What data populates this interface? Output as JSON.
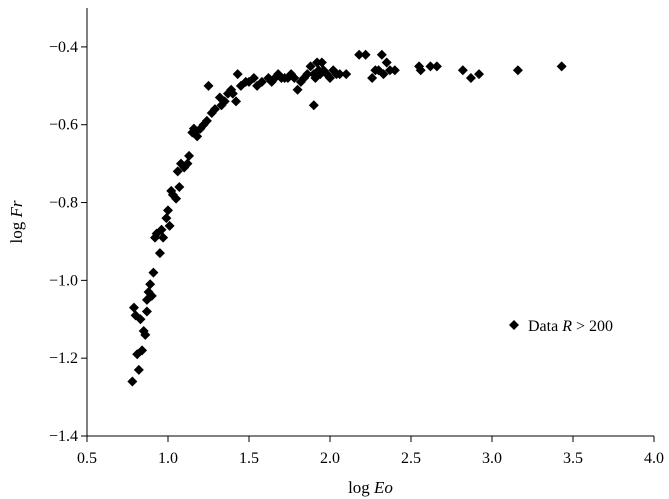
{
  "chart_data": {
    "type": "scatter",
    "title": "",
    "xlabel": {
      "prefix": "log ",
      "var": "Eo"
    },
    "ylabel": {
      "prefix": "log ",
      "var": "Fr"
    },
    "xlim": [
      0.5,
      4.0
    ],
    "ylim": [
      -1.4,
      -0.3
    ],
    "xticks": [
      0.5,
      1.0,
      1.5,
      2.0,
      2.5,
      3.0,
      3.5,
      4.0
    ],
    "xtick_labels": [
      "0.5",
      "1.0",
      "1.5",
      "2.0",
      "2.5",
      "3.0",
      "3.5",
      "4.0"
    ],
    "yticks": [
      -1.4,
      -1.2,
      -1.0,
      -0.8,
      -0.6,
      -0.4
    ],
    "ytick_labels": [
      "−1.4",
      "−1.2",
      "−1.0",
      "−0.8",
      "−0.6",
      "−0.4"
    ],
    "grid": false,
    "legend_position": "right",
    "marker": "diamond",
    "color": "#000000",
    "series": [
      {
        "legend": {
          "prefix": "Data ",
          "var": "R",
          "suffix": " > 200"
        },
        "points": [
          [
            0.78,
            -1.26
          ],
          [
            0.79,
            -1.07
          ],
          [
            0.8,
            -1.09
          ],
          [
            0.81,
            -1.19
          ],
          [
            0.82,
            -1.23
          ],
          [
            0.83,
            -1.1
          ],
          [
            0.84,
            -1.18
          ],
          [
            0.85,
            -1.13
          ],
          [
            0.86,
            -1.14
          ],
          [
            0.87,
            -1.08
          ],
          [
            0.87,
            -1.05
          ],
          [
            0.88,
            -1.03
          ],
          [
            0.89,
            -1.01
          ],
          [
            0.9,
            -1.04
          ],
          [
            0.91,
            -0.98
          ],
          [
            0.92,
            -0.89
          ],
          [
            0.93,
            -0.88
          ],
          [
            0.95,
            -0.93
          ],
          [
            0.96,
            -0.87
          ],
          [
            0.97,
            -0.89
          ],
          [
            0.99,
            -0.84
          ],
          [
            1.0,
            -0.82
          ],
          [
            1.01,
            -0.86
          ],
          [
            1.02,
            -0.77
          ],
          [
            1.03,
            -0.78
          ],
          [
            1.05,
            -0.79
          ],
          [
            1.06,
            -0.72
          ],
          [
            1.07,
            -0.76
          ],
          [
            1.08,
            -0.7
          ],
          [
            1.1,
            -0.71
          ],
          [
            1.12,
            -0.7
          ],
          [
            1.13,
            -0.68
          ],
          [
            1.15,
            -0.62
          ],
          [
            1.16,
            -0.61
          ],
          [
            1.17,
            -0.62
          ],
          [
            1.18,
            -0.63
          ],
          [
            1.2,
            -0.61
          ],
          [
            1.22,
            -0.6
          ],
          [
            1.24,
            -0.59
          ],
          [
            1.25,
            -0.5
          ],
          [
            1.27,
            -0.57
          ],
          [
            1.29,
            -0.56
          ],
          [
            1.32,
            -0.53
          ],
          [
            1.33,
            -0.55
          ],
          [
            1.35,
            -0.54
          ],
          [
            1.37,
            -0.52
          ],
          [
            1.39,
            -0.51
          ],
          [
            1.4,
            -0.52
          ],
          [
            1.42,
            -0.54
          ],
          [
            1.43,
            -0.47
          ],
          [
            1.45,
            -0.5
          ],
          [
            1.48,
            -0.49
          ],
          [
            1.5,
            -0.49
          ],
          [
            1.53,
            -0.48
          ],
          [
            1.55,
            -0.5
          ],
          [
            1.58,
            -0.49
          ],
          [
            1.62,
            -0.48
          ],
          [
            1.64,
            -0.49
          ],
          [
            1.66,
            -0.48
          ],
          [
            1.68,
            -0.47
          ],
          [
            1.7,
            -0.48
          ],
          [
            1.72,
            -0.48
          ],
          [
            1.74,
            -0.48
          ],
          [
            1.76,
            -0.47
          ],
          [
            1.78,
            -0.48
          ],
          [
            1.8,
            -0.51
          ],
          [
            1.82,
            -0.49
          ],
          [
            1.84,
            -0.48
          ],
          [
            1.86,
            -0.47
          ],
          [
            1.88,
            -0.45
          ],
          [
            1.9,
            -0.47
          ],
          [
            1.9,
            -0.55
          ],
          [
            1.91,
            -0.48
          ],
          [
            1.92,
            -0.44
          ],
          [
            1.93,
            -0.46
          ],
          [
            1.94,
            -0.47
          ],
          [
            1.95,
            -0.44
          ],
          [
            1.96,
            -0.46
          ],
          [
            1.98,
            -0.47
          ],
          [
            2.0,
            -0.48
          ],
          [
            2.02,
            -0.46
          ],
          [
            2.04,
            -0.47
          ],
          [
            2.06,
            -0.47
          ],
          [
            2.1,
            -0.47
          ],
          [
            2.18,
            -0.42
          ],
          [
            2.22,
            -0.42
          ],
          [
            2.26,
            -0.48
          ],
          [
            2.28,
            -0.46
          ],
          [
            2.3,
            -0.46
          ],
          [
            2.32,
            -0.42
          ],
          [
            2.33,
            -0.47
          ],
          [
            2.35,
            -0.44
          ],
          [
            2.37,
            -0.46
          ],
          [
            2.4,
            -0.46
          ],
          [
            2.55,
            -0.45
          ],
          [
            2.56,
            -0.46
          ],
          [
            2.62,
            -0.45
          ],
          [
            2.66,
            -0.45
          ],
          [
            2.82,
            -0.46
          ],
          [
            2.87,
            -0.48
          ],
          [
            2.92,
            -0.47
          ],
          [
            3.16,
            -0.46
          ],
          [
            3.43,
            -0.45
          ]
        ]
      }
    ]
  }
}
